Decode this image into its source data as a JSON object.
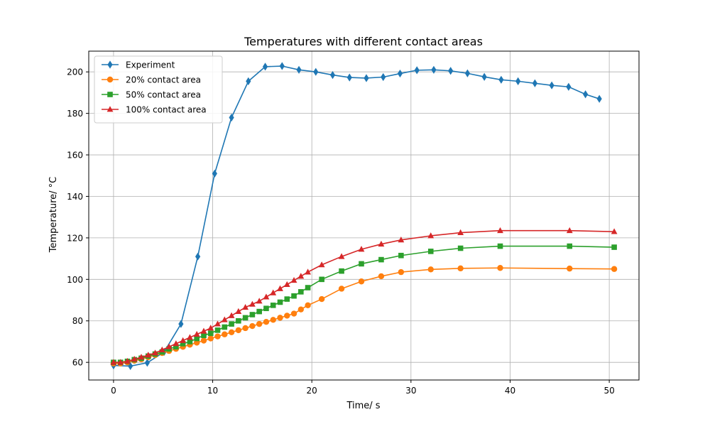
{
  "chart_data": {
    "type": "line",
    "title": "Temperatures with different contact areas",
    "xlabel": "Time/ s",
    "ylabel": "Temperature/ °C",
    "xlim": [
      -2.5,
      53
    ],
    "ylim": [
      51.5,
      210
    ],
    "x_ticks": [
      0,
      10,
      20,
      30,
      40,
      50
    ],
    "y_ticks": [
      60,
      80,
      100,
      120,
      140,
      160,
      180,
      200
    ],
    "grid": true,
    "legend_position": "top-left",
    "series": [
      {
        "name": "Experiment",
        "color": "#1f77b4",
        "marker": "diamond",
        "x": [
          0,
          1.7,
          3.4,
          5.1,
          6.8,
          8.5,
          10.2,
          11.9,
          13.6,
          15.3,
          17.0,
          18.7,
          20.4,
          22.1,
          23.8,
          25.5,
          27.2,
          28.9,
          30.6,
          32.3,
          34.0,
          35.7,
          37.4,
          39.1,
          40.8,
          42.5,
          44.2,
          45.9,
          47.6,
          49.0
        ],
        "y": [
          58.5,
          58.2,
          59.8,
          65.0,
          78.5,
          111.0,
          151.0,
          178.0,
          195.5,
          202.5,
          202.8,
          201.0,
          200.0,
          198.5,
          197.3,
          197.0,
          197.5,
          199.2,
          200.8,
          201.0,
          200.5,
          199.3,
          197.6,
          196.2,
          195.5,
          194.5,
          193.5,
          192.8,
          189.2,
          187.0
        ]
      },
      {
        "name": "20% contact area",
        "color": "#ff7f0e",
        "marker": "circle",
        "x": [
          0,
          0.7,
          1.4,
          2.1,
          2.8,
          3.5,
          4.2,
          4.9,
          5.6,
          6.3,
          7.0,
          7.7,
          8.4,
          9.1,
          9.8,
          10.5,
          11.2,
          11.9,
          12.6,
          13.3,
          14.0,
          14.7,
          15.4,
          16.1,
          16.8,
          17.5,
          18.2,
          18.9,
          19.6,
          21.0,
          23.0,
          25.0,
          27.0,
          29.0,
          32.0,
          35.0,
          39.0,
          46.0,
          50.5
        ],
        "y": [
          59.5,
          59.5,
          60.0,
          60.8,
          61.5,
          62.5,
          63.5,
          64.5,
          65.5,
          66.5,
          67.5,
          68.5,
          69.5,
          70.5,
          71.5,
          72.5,
          73.5,
          74.5,
          75.5,
          76.5,
          77.5,
          78.5,
          79.5,
          80.5,
          81.5,
          82.5,
          83.5,
          85.5,
          87.5,
          90.5,
          95.5,
          99.0,
          101.5,
          103.5,
          104.8,
          105.3,
          105.5,
          105.2,
          105.0
        ]
      },
      {
        "name": "50% contact area",
        "color": "#2ca02c",
        "marker": "square",
        "x": [
          0,
          0.7,
          1.4,
          2.1,
          2.8,
          3.5,
          4.2,
          4.9,
          5.6,
          6.3,
          7.0,
          7.7,
          8.4,
          9.1,
          9.8,
          10.5,
          11.2,
          11.9,
          12.6,
          13.3,
          14.0,
          14.7,
          15.4,
          16.1,
          16.8,
          17.5,
          18.2,
          18.9,
          19.6,
          21.0,
          23.0,
          25.0,
          27.0,
          29.0,
          32.0,
          35.0,
          39.0,
          46.0,
          50.5
        ],
        "y": [
          60.0,
          60.0,
          60.5,
          61.3,
          62.0,
          63.0,
          64.0,
          65.0,
          66.5,
          67.5,
          69.0,
          70.0,
          71.5,
          73.0,
          74.0,
          75.5,
          77.0,
          78.5,
          80.0,
          81.5,
          83.0,
          84.5,
          86.0,
          87.5,
          89.0,
          90.5,
          92.0,
          94.0,
          96.0,
          100.0,
          104.0,
          107.5,
          109.5,
          111.5,
          113.5,
          115.0,
          116.0,
          116.0,
          115.5
        ]
      },
      {
        "name": "100% contact area",
        "color": "#d62728",
        "marker": "triangle",
        "x": [
          0,
          0.7,
          1.4,
          2.1,
          2.8,
          3.5,
          4.2,
          4.9,
          5.6,
          6.3,
          7.0,
          7.7,
          8.4,
          9.1,
          9.8,
          10.5,
          11.2,
          11.9,
          12.6,
          13.3,
          14.0,
          14.7,
          15.4,
          16.1,
          16.8,
          17.5,
          18.2,
          18.9,
          19.6,
          21.0,
          23.0,
          25.0,
          27.0,
          29.0,
          32.0,
          35.0,
          39.0,
          46.0,
          50.5
        ],
        "y": [
          60.0,
          60.0,
          60.5,
          61.5,
          62.5,
          63.5,
          64.5,
          66.0,
          67.5,
          69.0,
          70.5,
          72.0,
          73.5,
          75.0,
          76.5,
          78.5,
          80.5,
          82.5,
          84.5,
          86.5,
          88.0,
          89.5,
          91.5,
          93.5,
          95.5,
          97.5,
          99.5,
          101.5,
          103.5,
          107.0,
          111.0,
          114.5,
          117.0,
          119.0,
          121.0,
          122.5,
          123.5,
          123.5,
          123.0
        ]
      }
    ]
  }
}
